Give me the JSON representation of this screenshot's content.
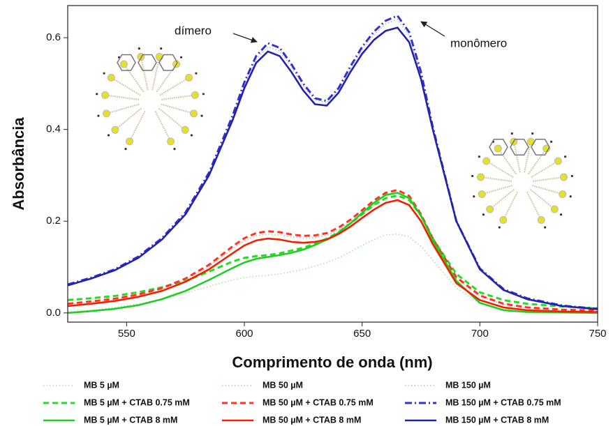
{
  "chart_data": {
    "type": "line",
    "xlabel": "Comprimento de onda (nm)",
    "ylabel": "Absorbância",
    "annotations": [
      "dímero",
      "monômero"
    ],
    "x": [
      525,
      535,
      545,
      555,
      565,
      575,
      585,
      595,
      600,
      605,
      610,
      615,
      620,
      625,
      630,
      635,
      640,
      645,
      650,
      655,
      660,
      665,
      670,
      675,
      680,
      690,
      700,
      710,
      720,
      735,
      750
    ],
    "xlim": [
      525,
      750
    ],
    "xticks": [
      550,
      600,
      650,
      700,
      750
    ],
    "ylim": [
      -0.02,
      0.67
    ],
    "yticks": [
      {
        "value": 0,
        "label": "0.0"
      },
      0.2,
      0.4,
      0.6
    ],
    "series": [
      {
        "name": "MB 5 µM",
        "color": "#a6e3a6",
        "style": "dotted",
        "values": [
          0.002,
          0.006,
          0.012,
          0.02,
          0.03,
          0.043,
          0.058,
          0.072,
          0.077,
          0.08,
          0.082,
          0.085,
          0.09,
          0.095,
          0.102,
          0.11,
          0.12,
          0.133,
          0.147,
          0.16,
          0.17,
          0.172,
          0.166,
          0.145,
          0.115,
          0.055,
          0.02,
          0.008,
          0.004,
          0.002,
          0.001
        ]
      },
      {
        "name": "MB 50 µM",
        "color": "#f2a9a9",
        "style": "dotted",
        "values": [
          0.019,
          0.024,
          0.03,
          0.039,
          0.052,
          0.072,
          0.101,
          0.14,
          0.157,
          0.168,
          0.172,
          0.17,
          0.166,
          0.163,
          0.164,
          0.169,
          0.181,
          0.198,
          0.219,
          0.24,
          0.256,
          0.262,
          0.25,
          0.211,
          0.158,
          0.075,
          0.036,
          0.019,
          0.011,
          0.006,
          0.004
        ]
      },
      {
        "name": "MB 150 µM",
        "color": "#b4b4ea",
        "style": "dotted",
        "values": [
          0.061,
          0.076,
          0.094,
          0.121,
          0.161,
          0.216,
          0.302,
          0.425,
          0.497,
          0.553,
          0.58,
          0.571,
          0.536,
          0.495,
          0.464,
          0.458,
          0.486,
          0.532,
          0.574,
          0.606,
          0.63,
          0.64,
          0.604,
          0.518,
          0.4,
          0.198,
          0.096,
          0.051,
          0.031,
          0.015,
          0.008
        ]
      },
      {
        "name": "MB 5 µM + CTAB 0.75 mM",
        "color": "#22dd22",
        "style": "dashed",
        "values": [
          0.028,
          0.032,
          0.037,
          0.045,
          0.056,
          0.07,
          0.09,
          0.112,
          0.12,
          0.124,
          0.126,
          0.13,
          0.136,
          0.142,
          0.151,
          0.162,
          0.176,
          0.195,
          0.215,
          0.235,
          0.25,
          0.256,
          0.246,
          0.212,
          0.162,
          0.085,
          0.045,
          0.028,
          0.02,
          0.014,
          0.01
        ]
      },
      {
        "name": "MB 50 µM + CTAB 0.75 mM",
        "color": "#ff3322",
        "style": "dashed",
        "values": [
          0.02,
          0.025,
          0.031,
          0.04,
          0.054,
          0.075,
          0.105,
          0.145,
          0.163,
          0.174,
          0.178,
          0.176,
          0.171,
          0.168,
          0.169,
          0.174,
          0.186,
          0.203,
          0.224,
          0.245,
          0.262,
          0.268,
          0.255,
          0.215,
          0.162,
          0.078,
          0.038,
          0.02,
          0.012,
          0.007,
          0.005
        ]
      },
      {
        "name": "MB 150 µM + CTAB 0.75 mM",
        "color": "#3333cc",
        "style": "dashdot",
        "values": [
          0.062,
          0.077,
          0.095,
          0.123,
          0.163,
          0.219,
          0.306,
          0.43,
          0.503,
          0.56,
          0.588,
          0.578,
          0.542,
          0.5,
          0.468,
          0.462,
          0.49,
          0.537,
          0.58,
          0.613,
          0.637,
          0.648,
          0.612,
          0.525,
          0.405,
          0.2,
          0.097,
          0.052,
          0.032,
          0.016,
          0.009
        ]
      },
      {
        "name": "MB 5 µM + CTAB 8 mM",
        "color": "#22cc22",
        "style": "solid",
        "values": [
          0.0,
          0.004,
          0.009,
          0.017,
          0.03,
          0.048,
          0.072,
          0.098,
          0.11,
          0.118,
          0.122,
          0.126,
          0.131,
          0.138,
          0.148,
          0.16,
          0.175,
          0.195,
          0.218,
          0.24,
          0.257,
          0.262,
          0.25,
          0.212,
          0.158,
          0.07,
          0.022,
          0.006,
          0.002,
          0.001,
          0.0
        ]
      },
      {
        "name": "MB 50 µM + CTAB 8 mM",
        "color": "#ee2200",
        "style": "solid",
        "values": [
          0.015,
          0.02,
          0.026,
          0.035,
          0.048,
          0.068,
          0.095,
          0.13,
          0.147,
          0.158,
          0.162,
          0.16,
          0.155,
          0.153,
          0.155,
          0.16,
          0.172,
          0.188,
          0.207,
          0.225,
          0.24,
          0.246,
          0.235,
          0.2,
          0.15,
          0.065,
          0.028,
          0.012,
          0.006,
          0.003,
          0.002
        ]
      },
      {
        "name": "MB 150 µM + CTAB 8 mM",
        "color": "#2222aa",
        "style": "solid",
        "values": [
          0.06,
          0.075,
          0.093,
          0.12,
          0.16,
          0.215,
          0.3,
          0.42,
          0.49,
          0.545,
          0.57,
          0.56,
          0.525,
          0.485,
          0.455,
          0.452,
          0.48,
          0.525,
          0.565,
          0.595,
          0.615,
          0.622,
          0.59,
          0.51,
          0.4,
          0.2,
          0.095,
          0.05,
          0.03,
          0.015,
          0.008
        ]
      }
    ]
  }
}
